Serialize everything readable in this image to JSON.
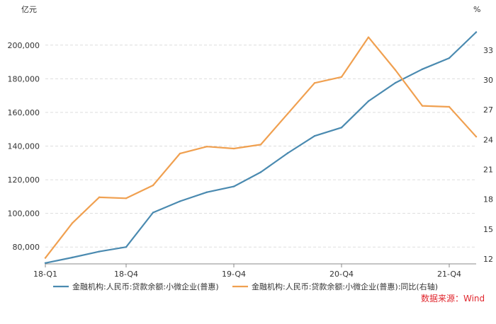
{
  "chart_data": {
    "type": "line",
    "left_unit": "亿元",
    "right_unit": "%",
    "x": [
      "18-Q1",
      "18-Q2",
      "18-Q3",
      "18-Q4",
      "19-Q1",
      "19-Q2",
      "19-Q3",
      "19-Q4",
      "20-Q1",
      "20-Q2",
      "20-Q3",
      "20-Q4",
      "21-Q1",
      "21-Q2",
      "21-Q3",
      "21-Q4",
      "22-Q1"
    ],
    "x_tick_labels": [
      "18-Q1",
      "18-Q4",
      "19-Q4",
      "20-Q4",
      "21-Q4"
    ],
    "x_tick_indices": [
      0,
      3,
      7,
      11,
      15
    ],
    "y_left": {
      "min": 70000,
      "max": 210000,
      "ticks": [
        80000,
        100000,
        120000,
        140000,
        160000,
        180000,
        200000
      ],
      "tick_labels": [
        "80,000",
        "100,000",
        "120,000",
        "140,000",
        "160,000",
        "180,000",
        "200,000"
      ]
    },
    "y_right": {
      "min": 11.5,
      "max": 35.2,
      "ticks": [
        12,
        15,
        18,
        21,
        24,
        27,
        30,
        33
      ],
      "tick_labels": [
        "12",
        "15",
        "18",
        "21",
        "24",
        "27",
        "30",
        "33"
      ]
    },
    "grid": true,
    "series": [
      {
        "name": "金融机构:人民币:贷款余额:小微企业(普惠)",
        "axis": "left",
        "color": "#4a8ab0",
        "values": [
          70500,
          73800,
          77300,
          80000,
          100500,
          107200,
          112600,
          116000,
          124500,
          135800,
          146000,
          151000,
          166700,
          177600,
          185700,
          192300,
          207700
        ]
      },
      {
        "name": "金融机构:人民币:贷款余额:小微企业(普惠):同比(右轴)",
        "axis": "right",
        "color": "#f0a050",
        "values": [
          12.1,
          15.6,
          18.2,
          18.1,
          19.4,
          22.6,
          23.3,
          23.1,
          23.5,
          26.6,
          29.7,
          30.3,
          34.3,
          31.0,
          27.4,
          27.3,
          24.3
        ]
      }
    ]
  },
  "source": "数据来源：Wind"
}
